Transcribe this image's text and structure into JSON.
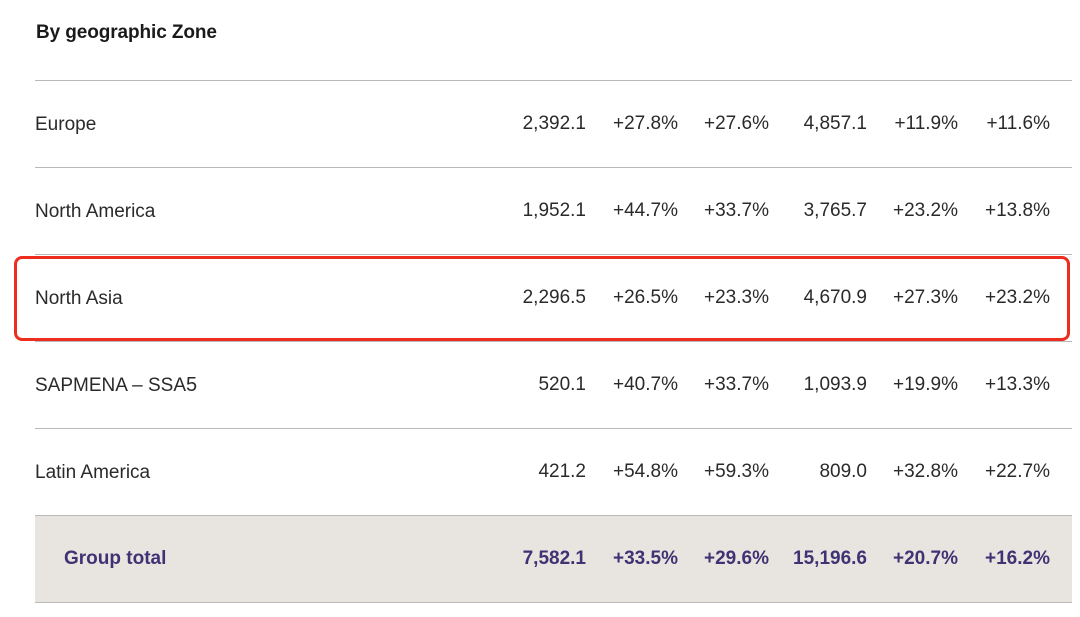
{
  "title": "By geographic Zone",
  "rows": [
    {
      "label": "Europe",
      "label_sup": "",
      "values": [
        "2,392.1",
        "+27.8%",
        "+27.6%",
        "4,857.1",
        "+11.9%",
        "+11.6%"
      ]
    },
    {
      "label": "North America",
      "label_sup": "",
      "values": [
        "1,952.1",
        "+44.7%",
        "+33.7%",
        "3,765.7",
        "+23.2%",
        "+13.8%"
      ]
    },
    {
      "label": "North Asia",
      "label_sup": "",
      "values": [
        "2,296.5",
        "+26.5%",
        "+23.3%",
        "4,670.9",
        "+27.3%",
        "+23.2%"
      ]
    },
    {
      "label": "SAPMENA – SSA",
      "label_sup": "5",
      "values": [
        "520.1",
        "+40.7%",
        "+33.7%",
        "1,093.9",
        "+19.9%",
        "+13.3%"
      ]
    },
    {
      "label": "Latin America",
      "label_sup": "",
      "values": [
        "421.2",
        "+54.8%",
        "+59.3%",
        "809.0",
        "+32.8%",
        "+22.7%"
      ]
    }
  ],
  "total": {
    "label": "Group total",
    "values": [
      "7,582.1",
      "+33.5%",
      "+29.6%",
      "15,196.6",
      "+20.7%",
      "+16.2%"
    ]
  },
  "highlight": {
    "row": "North Asia",
    "color": "#ef2d1f"
  },
  "colors": {
    "total_text": "#3f3374",
    "total_background": "#e8e5e0",
    "divider": "#b9b9b9"
  }
}
